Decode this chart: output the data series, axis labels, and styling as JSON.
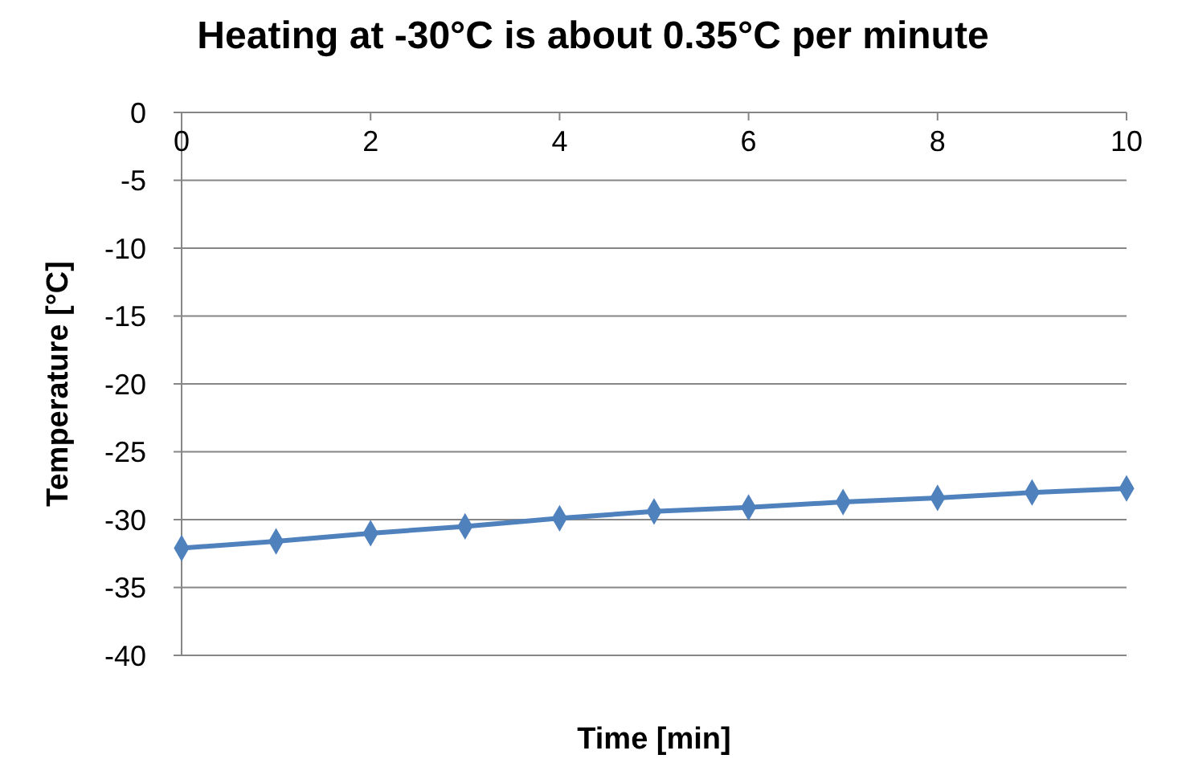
{
  "chart_data": {
    "type": "line",
    "title": "Heating at -30°C is about 0.35°C per minute",
    "xlabel": "Time [min]",
    "ylabel": "Temperature [°C]",
    "x": [
      0,
      1,
      2,
      3,
      4,
      5,
      6,
      7,
      8,
      9,
      10
    ],
    "series": [
      {
        "color": "#4f81bd",
        "values": [
          -32.1,
          -31.6,
          -31.0,
          -30.5,
          -29.9,
          -29.4,
          -29.1,
          -28.7,
          -28.4,
          -28.0,
          -27.7
        ]
      }
    ],
    "xlim": [
      0,
      10
    ],
    "xticks": [
      0,
      2,
      4,
      6,
      8,
      10
    ],
    "ylim": [
      -40,
      0
    ],
    "yticks": [
      -40,
      -35,
      -30,
      -25,
      -20,
      -15,
      -10,
      -5,
      0
    ],
    "grid": "y",
    "marker": "diamond",
    "line_style": "solid"
  }
}
